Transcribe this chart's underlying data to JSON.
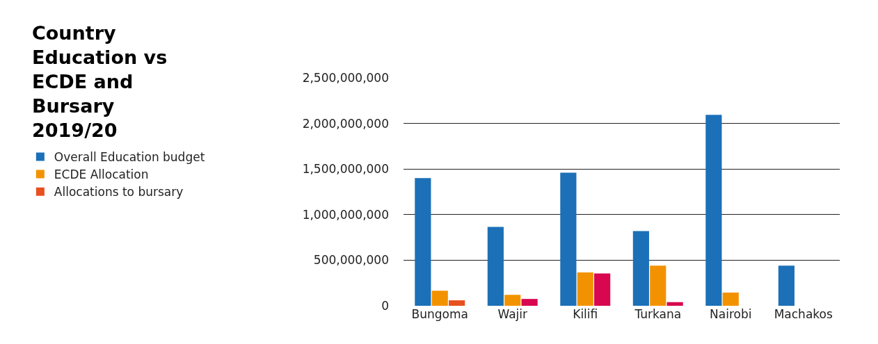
{
  "chart_data": {
    "type": "bar",
    "title": "Country Education vs ECDE and Bursary 2019/20",
    "categories": [
      "Bungoma",
      "Wajir",
      "Kilifi",
      "Turkana",
      "Nairobi",
      "Machakos"
    ],
    "series": [
      {
        "name": "Overall Education budget",
        "color": "#1b70b8",
        "values": [
          1400000000,
          865000000,
          1460000000,
          820000000,
          2095000000,
          440000000
        ]
      },
      {
        "name": "ECDE Allocation",
        "color": "#f39200",
        "values": [
          165000000,
          120000000,
          365000000,
          440000000,
          145000000,
          null
        ]
      },
      {
        "name": "Allocations to bursary",
        "color": "#d8074f",
        "colors": [
          "#e8501f",
          "#d8074f",
          "#d8074f",
          "#d8074f",
          "#d8074f",
          "#d8074f"
        ],
        "values": [
          60000000,
          75000000,
          355000000,
          40000000,
          null,
          null
        ]
      }
    ],
    "ylim": [
      0,
      2500000000
    ],
    "yticks": [
      {
        "value": 0,
        "label": "0"
      },
      {
        "value": 500000000,
        "label": "500,000,000"
      },
      {
        "value": 1000000000,
        "label": "1,000,000,000"
      },
      {
        "value": 1500000000,
        "label": "1,500,000,000"
      },
      {
        "value": 2000000000,
        "label": "2,000,000,000"
      },
      {
        "value": 2500000000,
        "label": "2,500,000,000"
      }
    ],
    "grid": "y",
    "legend": "left"
  }
}
